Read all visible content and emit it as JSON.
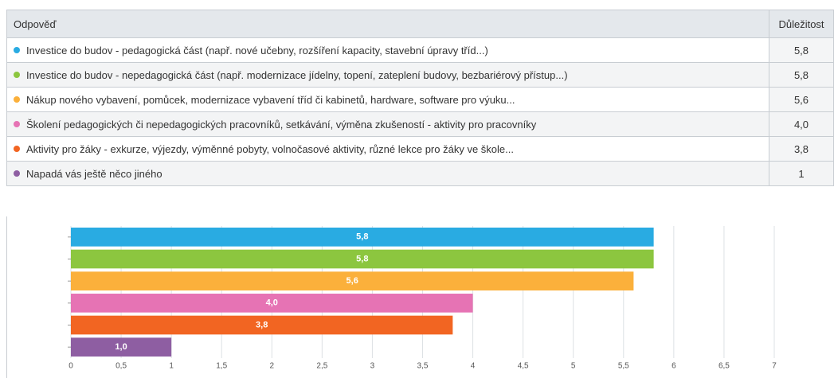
{
  "table": {
    "header": [
      "Odpověď",
      "Důležitost"
    ],
    "rows": [
      [
        "Investice do budov - pedagogická část (např. nové učebny, rozšíření kapacity, stavební úpravy tříd...)",
        "5,8"
      ],
      [
        "Investice do budov - nepedagogická část (např. modernizace jídelny, topení, zateplení budovy, bezbariérový přístup...)",
        "5,8"
      ],
      [
        "Nákup nového vybavení, pomůcek, modernizace vybavení tříd či kabinetů, hardware, software pro výuku...",
        "5,6"
      ],
      [
        "Školení pedagogických či nepedagogických pracovníků, setkávání, výměna zkušeností - aktivity pro pracovníky",
        "4,0"
      ],
      [
        "Aktivity pro žáky - exkurze, výjezdy, výměnné pobyty, volnočasové aktivity, různé lekce pro žáky ve škole...",
        "3,8"
      ],
      [
        "Napadá vás ještě něco jiného",
        "1"
      ]
    ]
  },
  "chart_data": {
    "type": "hbar",
    "values": [
      5.8,
      5.8,
      5.6,
      4.0,
      3.8,
      1.0
    ],
    "value_labels": [
      "5,8",
      "5,8",
      "5,6",
      "4,0",
      "3,8",
      "1,0"
    ],
    "colors": [
      "#29abe2",
      "#8cc63f",
      "#fbb03b",
      "#e673b4",
      "#f26522",
      "#8e5ea2"
    ],
    "xlim": [
      0,
      7
    ],
    "xticks": [
      0,
      {
        "value": 0.5,
        "label": "0,5"
      },
      1,
      {
        "value": 1.5,
        "label": "1,5"
      },
      2,
      {
        "value": 2.5,
        "label": "2,5"
      },
      3,
      {
        "value": 3.5,
        "label": "3,5"
      },
      4,
      {
        "value": 4.5,
        "label": "4,5"
      },
      5,
      {
        "value": 5.5,
        "label": "5,5"
      },
      6,
      {
        "value": 6.5,
        "label": "6,5"
      },
      7
    ],
    "grid": true
  }
}
